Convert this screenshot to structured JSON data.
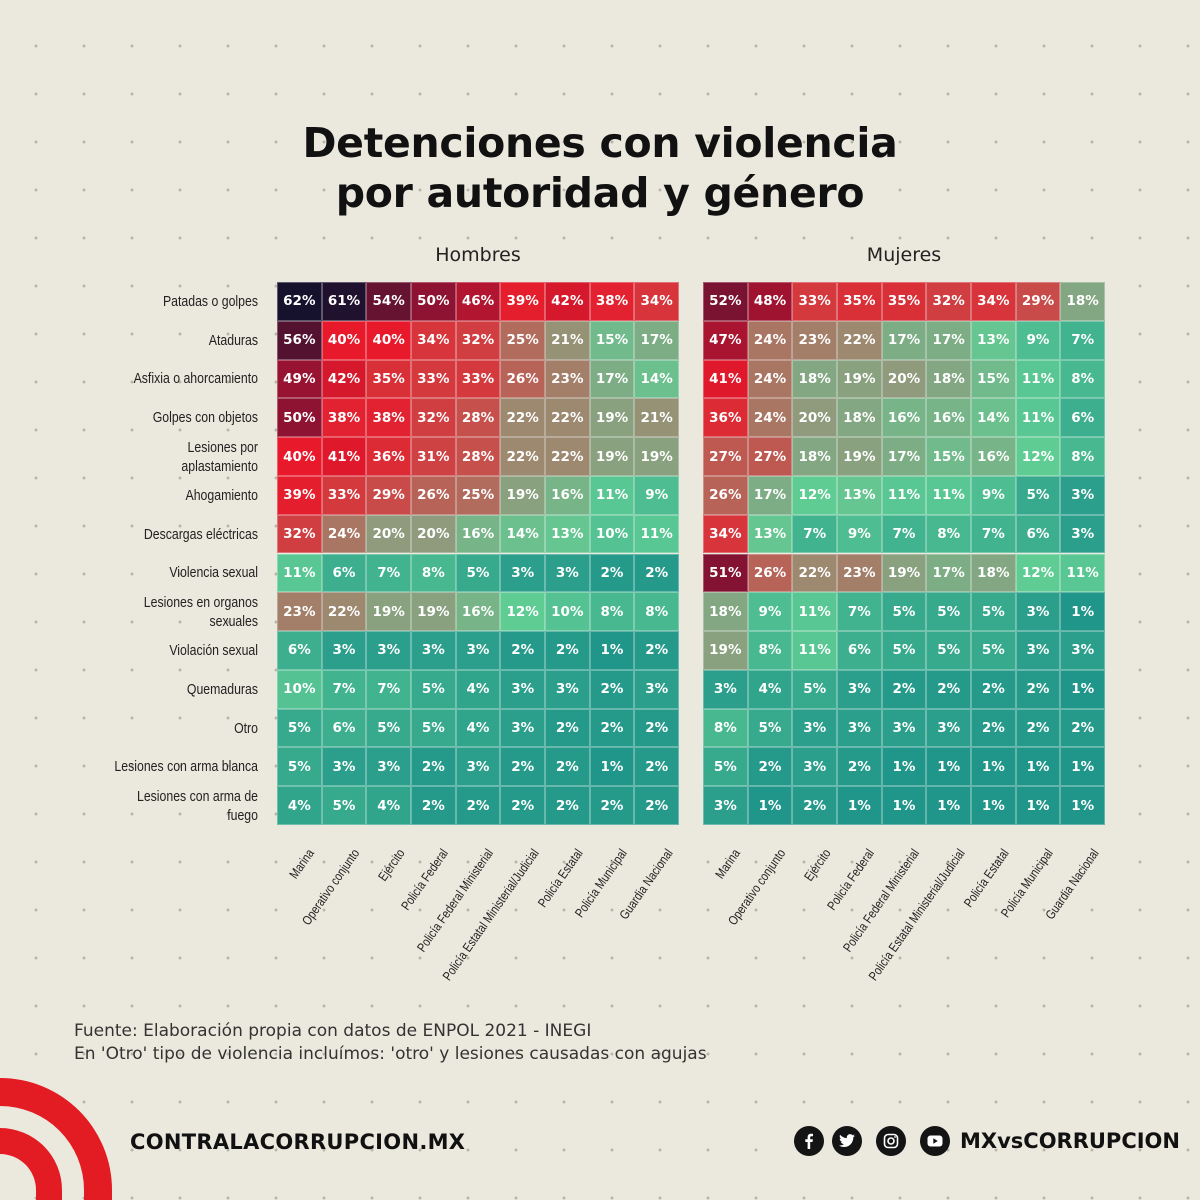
{
  "title_lines": [
    "Detenciones con violencia",
    "por autoridad y género"
  ],
  "chart_data": {
    "type": "heatmap",
    "rows": [
      "Patadas o golpes",
      "Ataduras",
      "Asfixia o ahorcamiento",
      "Golpes con objetos",
      "Lesiones por aplastamiento",
      "Ahogamiento",
      "Descargas eléctricas",
      "Violencia sexual",
      "Lesiones en organos sexuales",
      "Violación sexual",
      "Quemaduras",
      "Otro",
      "Lesiones con arma blanca",
      "Lesiones con arma de fuego"
    ],
    "row_label_lines": [
      [
        "Patadas o golpes"
      ],
      [
        "Ataduras"
      ],
      [
        "Asfixia o ahorcamiento"
      ],
      [
        "Golpes con objetos"
      ],
      [
        "Lesiones por",
        "aplastamiento"
      ],
      [
        "Ahogamiento"
      ],
      [
        "Descargas eléctricas"
      ],
      [
        "Violencia sexual"
      ],
      [
        "Lesiones en organos",
        "sexuales"
      ],
      [
        "Violación sexual"
      ],
      [
        "Quemaduras"
      ],
      [
        "Otro"
      ],
      [
        "Lesiones con arma blanca"
      ],
      [
        "Lesiones con arma de",
        "fuego"
      ]
    ],
    "columns": [
      "Marina",
      "Operativo conjunto",
      "Ejército",
      "Policía Federal",
      "Policía Federal Ministerial",
      "Policía Estatal Ministerial/Judicial",
      "Policía Estatal",
      "Policía Municipal",
      "Guardia Nacional"
    ],
    "unit": "%",
    "panels": [
      {
        "name": "Hombres",
        "values": [
          [
            62,
            61,
            54,
            50,
            46,
            39,
            42,
            38,
            34
          ],
          [
            56,
            40,
            40,
            34,
            32,
            25,
            21,
            15,
            17
          ],
          [
            49,
            42,
            35,
            33,
            33,
            26,
            23,
            17,
            14
          ],
          [
            50,
            38,
            38,
            32,
            28,
            22,
            22,
            19,
            21
          ],
          [
            40,
            41,
            36,
            31,
            28,
            22,
            22,
            19,
            19
          ],
          [
            39,
            33,
            29,
            26,
            25,
            19,
            16,
            11,
            9
          ],
          [
            32,
            24,
            20,
            20,
            16,
            14,
            13,
            10,
            11
          ],
          [
            11,
            6,
            7,
            8,
            5,
            3,
            3,
            2,
            2
          ],
          [
            23,
            22,
            19,
            19,
            16,
            12,
            10,
            8,
            8
          ],
          [
            6,
            3,
            3,
            3,
            3,
            2,
            2,
            1,
            2
          ],
          [
            10,
            7,
            7,
            5,
            4,
            3,
            3,
            2,
            3
          ],
          [
            5,
            6,
            5,
            5,
            4,
            3,
            2,
            2,
            2
          ],
          [
            5,
            3,
            3,
            2,
            3,
            2,
            2,
            1,
            2
          ],
          [
            4,
            5,
            4,
            2,
            2,
            2,
            2,
            2,
            2
          ]
        ]
      },
      {
        "name": "Mujeres",
        "values": [
          [
            52,
            48,
            33,
            35,
            35,
            32,
            34,
            29,
            18
          ],
          [
            47,
            24,
            23,
            22,
            17,
            17,
            13,
            9,
            7
          ],
          [
            41,
            24,
            18,
            19,
            20,
            18,
            15,
            11,
            8
          ],
          [
            36,
            24,
            20,
            18,
            16,
            16,
            14,
            11,
            6
          ],
          [
            27,
            27,
            18,
            19,
            17,
            15,
            16,
            12,
            8
          ],
          [
            26,
            17,
            12,
            13,
            11,
            11,
            9,
            5,
            3
          ],
          [
            34,
            13,
            7,
            9,
            7,
            8,
            7,
            6,
            3
          ],
          [
            51,
            26,
            22,
            23,
            19,
            17,
            18,
            12,
            11
          ],
          [
            18,
            9,
            11,
            7,
            5,
            5,
            5,
            3,
            1
          ],
          [
            19,
            8,
            11,
            6,
            5,
            5,
            5,
            3,
            3
          ],
          [
            3,
            4,
            5,
            3,
            2,
            2,
            2,
            2,
            1
          ],
          [
            8,
            5,
            3,
            3,
            3,
            3,
            2,
            2,
            2
          ],
          [
            5,
            2,
            3,
            2,
            1,
            1,
            1,
            1,
            1
          ],
          [
            3,
            1,
            2,
            1,
            1,
            1,
            1,
            1,
            1
          ]
        ]
      }
    ],
    "color_scale": [
      "#1a9088",
      "#5fcc94",
      "#8f9b7c",
      "#c5504c",
      "#e8192a",
      "#8e1232",
      "#16122e"
    ]
  },
  "notes": [
    "Fuente: Elaboración propia con datos de ENPOL 2021 - INEGI",
    "En 'Otro' tipo de violencia incluímos: 'otro' y lesiones causadas con agujas"
  ],
  "footer": {
    "site": "CONTRALACORRUPCION.MX",
    "handle": "MXvsCORRUPCION",
    "icons": [
      "facebook-icon",
      "twitter-icon",
      "instagram-icon",
      "youtube-icon"
    ]
  },
  "brand_color": "#e31b23"
}
